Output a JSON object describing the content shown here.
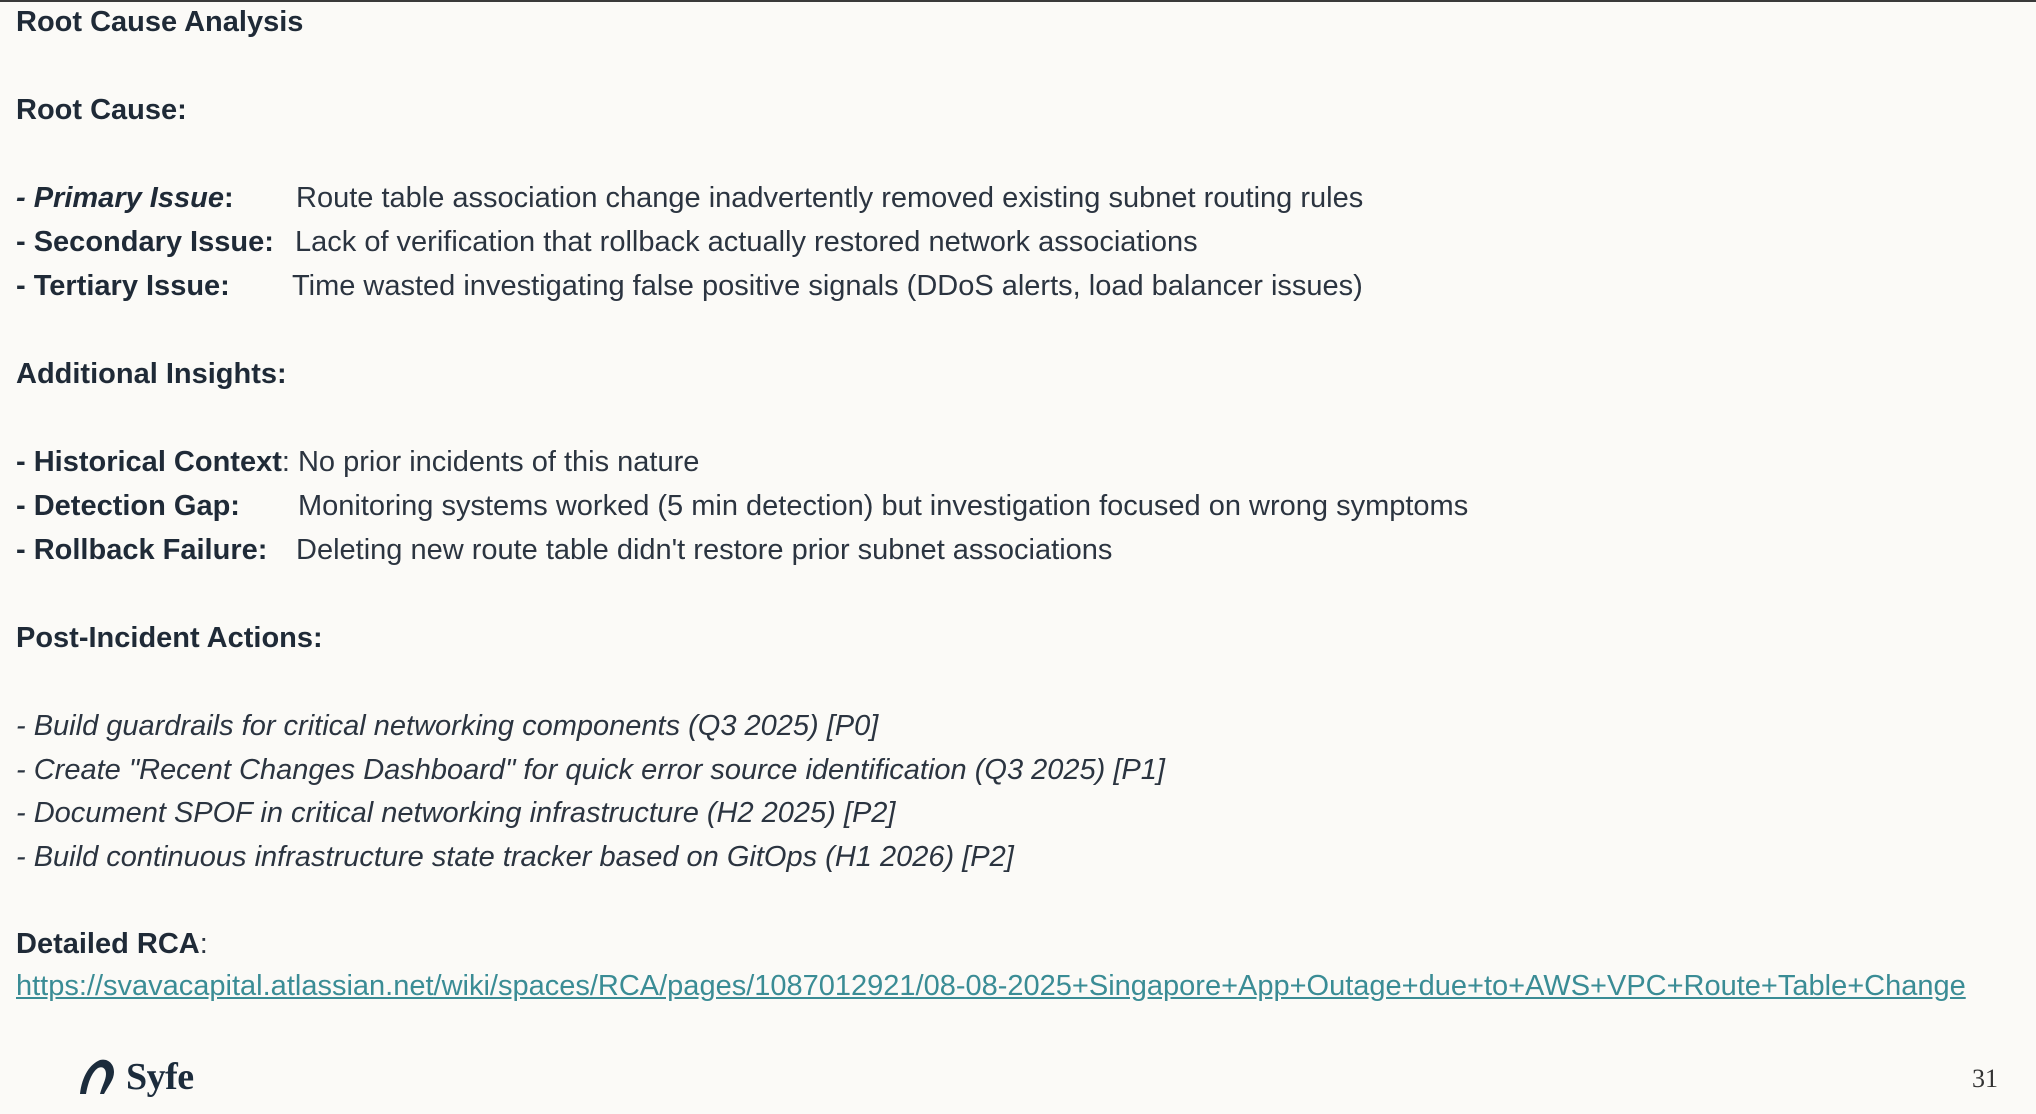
{
  "slide": {
    "title": "Root Cause Analysis",
    "page_number": "31",
    "brand": "Syfe"
  },
  "root_cause": {
    "heading": "Root Cause:",
    "items": [
      {
        "label": "- Primary Issue",
        "suffix": ":",
        "text": "Route table association change inadvertently removed existing subnet routing rules"
      },
      {
        "label": "- Secondary Issue:",
        "text": "Lack of verification that rollback actually restored network associations"
      },
      {
        "label": "- Tertiary Issue:",
        "text": "Time wasted investigating false positive signals (DDoS alerts, load balancer issues)"
      }
    ]
  },
  "insights": {
    "heading": "Additional Insights:",
    "items": [
      {
        "label": "- Historical Context",
        "text": ": No prior incidents of this nature"
      },
      {
        "label": "- Detection Gap:",
        "text": "Monitoring systems worked (5 min detection) but investigation focused on wrong symptoms"
      },
      {
        "label": "- Rollback Failure:",
        "text": "Deleting new route table didn't restore prior subnet associations"
      }
    ]
  },
  "actions": {
    "heading": "Post-Incident Actions:",
    "items": [
      "- Build guardrails for critical networking components (Q3 2025) [P0]",
      "- Create \"Recent Changes Dashboard\" for quick error source identification (Q3 2025) [P1]",
      "- Document SPOF in critical networking infrastructure (H2 2025) [P2]",
      "- Build continuous infrastructure state tracker based on GitOps (H1 2026) [P2]"
    ]
  },
  "rca": {
    "heading": "Detailed RCA",
    "suffix": ":",
    "link": "https://svavacapital.atlassian.net/wiki/spaces/RCA/pages/1087012921/08-08-2025+Singapore+App+Outage+due+to+AWS+VPC+Route+Table+Change"
  },
  "colors": {
    "background": "#fbfaf7",
    "text": "#1f2a37",
    "link": "#3a8c95"
  }
}
